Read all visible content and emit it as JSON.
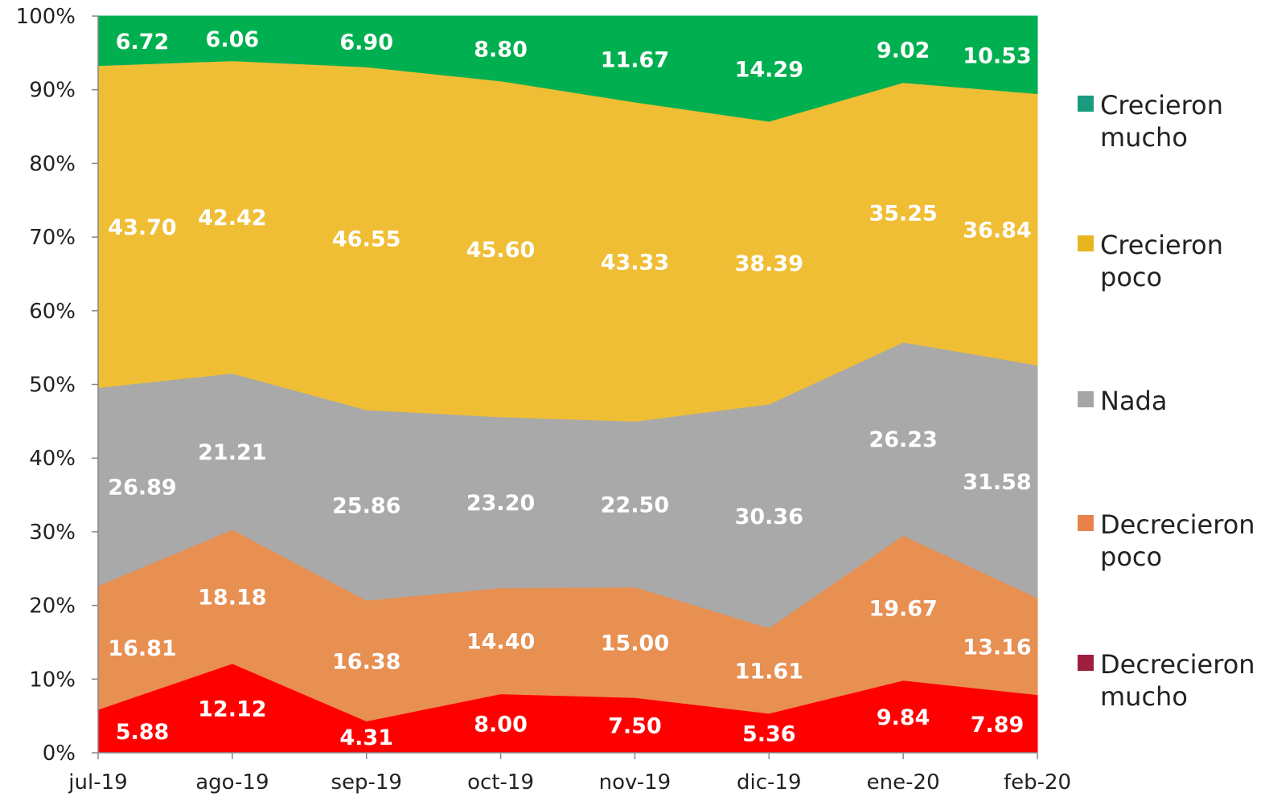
{
  "chart_data": {
    "type": "area",
    "stacked": "percent",
    "categories": [
      "jul-19",
      "ago-19",
      "sep-19",
      "oct-19",
      "nov-19",
      "dic-19",
      "ene-20",
      "feb-20"
    ],
    "series": [
      {
        "name": "Decrecieron mucho",
        "legend_lines": [
          "Decrecieron",
          "mucho"
        ],
        "legend_color": "#9e1f3c",
        "fill": "#ff0000",
        "values": [
          5.88,
          12.12,
          4.31,
          8.0,
          7.5,
          5.36,
          9.84,
          7.89
        ],
        "labels": [
          "5.88",
          "12.12",
          "4.31",
          "8.00",
          "7.50",
          "5.36",
          "9.84",
          "7.89"
        ]
      },
      {
        "name": "Decrecieron poco",
        "legend_lines": [
          "Decrecieron",
          "poco"
        ],
        "legend_color": "#e8824a",
        "fill": "#e88f52",
        "values": [
          16.81,
          18.18,
          16.38,
          14.4,
          15.0,
          11.61,
          19.67,
          13.16
        ],
        "labels": [
          "16.81",
          "18.18",
          "16.38",
          "14.40",
          "15.00",
          "11.61",
          "19.67",
          "13.16"
        ]
      },
      {
        "name": "Nada",
        "legend_lines": [
          "Nada"
        ],
        "legend_color": "#a6a6a6",
        "fill": "#a9a9a9",
        "values": [
          26.89,
          21.21,
          25.86,
          23.2,
          22.5,
          30.36,
          26.23,
          31.58
        ],
        "labels": [
          "26.89",
          "21.21",
          "25.86",
          "23.20",
          "22.50",
          "30.36",
          "26.23",
          "31.58"
        ]
      },
      {
        "name": "Crecieron poco",
        "legend_lines": [
          "Crecieron",
          "poco"
        ],
        "legend_color": "#e8b520",
        "fill": "#f0be35",
        "values": [
          43.7,
          42.42,
          46.55,
          45.6,
          43.33,
          38.39,
          35.25,
          36.84
        ],
        "labels": [
          "43.70",
          "42.42",
          "46.55",
          "45.60",
          "43.33",
          "38.39",
          "35.25",
          "36.84"
        ]
      },
      {
        "name": "Crecieron mucho",
        "legend_lines": [
          "Crecieron",
          "mucho"
        ],
        "legend_color": "#1a9a7f",
        "fill": "#00b050",
        "values": [
          6.72,
          6.06,
          6.9,
          8.8,
          11.67,
          14.29,
          9.02,
          10.53
        ],
        "labels": [
          "6.72",
          "6.06",
          "6.90",
          "8.80",
          "11.67",
          "14.29",
          "9.02",
          "10.53"
        ]
      }
    ],
    "yticks": [
      "0%",
      "10%",
      "20%",
      "30%",
      "40%",
      "50%",
      "60%",
      "70%",
      "80%",
      "90%",
      "100%"
    ],
    "ylim": [
      0,
      100
    ],
    "legend_position": "right",
    "grid": false
  }
}
